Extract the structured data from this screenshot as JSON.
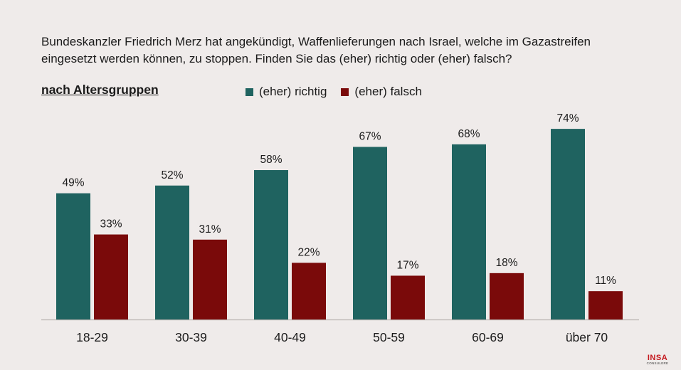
{
  "question": "Bundeskanzler Friedrich Merz hat angekündigt, Waffenlieferungen nach Israel, welche im Gazastreifen eingesetzt werden können, zu stoppen. Finden Sie das (eher) richtig oder (eher) falsch?",
  "subtitle": "nach Altersgruppen",
  "logo": {
    "main": "INSA",
    "sub": "CONSULERE"
  },
  "colors": {
    "richtig": "#1f6360",
    "falsch": "#7a0a0a",
    "background": "#efebea",
    "axis": "#b8b3b0"
  },
  "chart_data": {
    "type": "bar",
    "categories": [
      "18-29",
      "30-39",
      "40-49",
      "50-59",
      "60-69",
      "über 70"
    ],
    "series": [
      {
        "name": "(eher) richtig",
        "values": [
          49,
          52,
          58,
          67,
          68,
          74
        ],
        "labels": [
          "49%",
          "52%",
          "58%",
          "67%",
          "68%",
          "74%"
        ]
      },
      {
        "name": "(eher) falsch",
        "values": [
          33,
          31,
          22,
          17,
          18,
          11
        ],
        "labels": [
          "33%",
          "31%",
          "22%",
          "17%",
          "18%",
          "11%"
        ]
      }
    ],
    "legend_position": "top",
    "grid": false
  }
}
